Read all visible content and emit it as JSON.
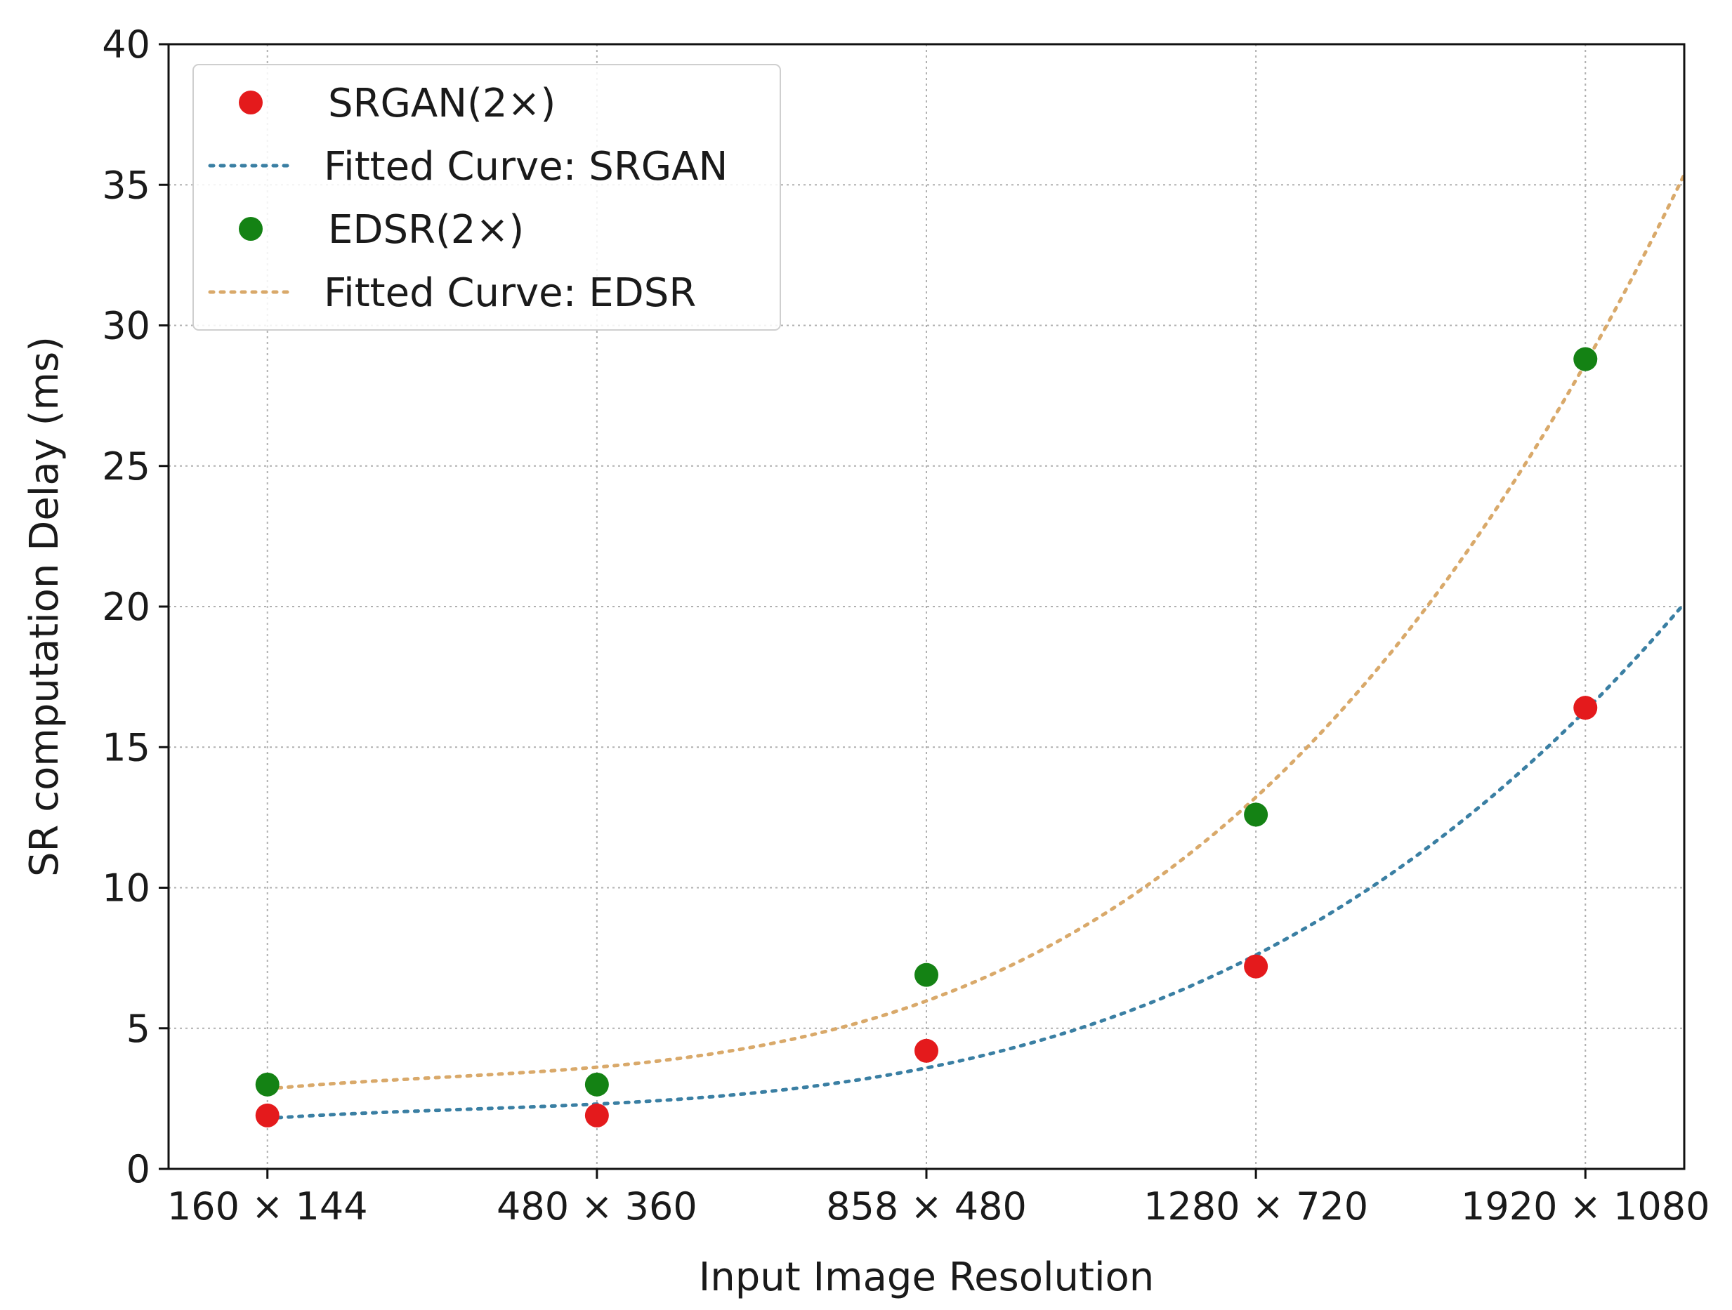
{
  "chart_data": {
    "type": "scatter",
    "title": "",
    "xlabel": "Input Image Resolution",
    "ylabel": "SR computation Delay (ms)",
    "categories": [
      "160 × 144",
      "480 × 360",
      "858 × 480",
      "1280 × 720",
      "1920 × 1080"
    ],
    "ylim": [
      0,
      40
    ],
    "yticks": [
      "0",
      "5",
      "10",
      "15",
      "20",
      "25",
      "30",
      "35",
      "40"
    ],
    "grid": true,
    "legend_position": "top-left",
    "series": [
      {
        "name": "SRGAN(2×)",
        "kind": "points",
        "color": "#e41a1c",
        "values": [
          1.9,
          1.9,
          4.2,
          7.2,
          16.4
        ]
      },
      {
        "name": "Fitted Curve: SRGAN",
        "kind": "fitted-curve",
        "color": "#3a7fa3",
        "fit_of": "SRGAN(2×)",
        "x_range": [
          0,
          4.3
        ]
      },
      {
        "name": "EDSR(2×)",
        "kind": "points",
        "color": "#148214",
        "values": [
          3.0,
          3.0,
          6.9,
          12.6,
          28.8
        ]
      },
      {
        "name": "Fitted Curve: EDSR",
        "kind": "fitted-curve",
        "color": "#d9a96a",
        "fit_of": "EDSR(2×)",
        "x_range": [
          0,
          4.3
        ]
      }
    ]
  }
}
